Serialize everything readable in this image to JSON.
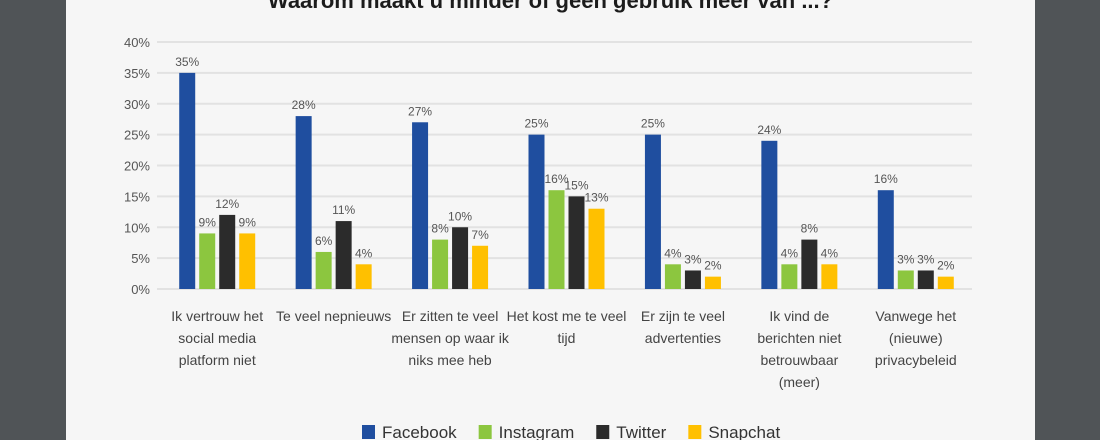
{
  "chart_data": {
    "type": "bar",
    "title": "Waarom maakt u minder of geen gebruik meer van ...?",
    "categories": [
      "Ik vertrouw het social media platform niet",
      "Te veel nepnieuws",
      "Er zitten te veel mensen op waar ik niks mee heb",
      "Het kost me te veel tijd",
      "Er zijn te veel advertenties",
      "Ik vind de berichten niet betrouwbaar (meer)",
      "Vanwege het (nieuwe) privacybeleid"
    ],
    "category_lines": [
      [
        "Ik vertrouw het",
        "social media",
        "platform niet"
      ],
      [
        "Te veel nepnieuws"
      ],
      [
        "Er zitten te veel",
        "mensen op waar ik",
        "niks mee heb"
      ],
      [
        "Het kost me te veel",
        "tijd"
      ],
      [
        "Er zijn te veel",
        "advertenties"
      ],
      [
        "Ik vind de",
        "berichten niet",
        "betrouwbaar",
        "(meer)"
      ],
      [
        "Vanwege het",
        "(nieuwe)",
        "privacybeleid"
      ]
    ],
    "series": [
      {
        "name": "Facebook",
        "color": "#1f4e9f",
        "values": [
          35,
          28,
          27,
          25,
          25,
          24,
          16
        ]
      },
      {
        "name": "Instagram",
        "color": "#8cc63f",
        "values": [
          9,
          6,
          8,
          16,
          4,
          4,
          3
        ]
      },
      {
        "name": "Twitter",
        "color": "#2b2b2b",
        "values": [
          12,
          11,
          10,
          15,
          3,
          8,
          3
        ]
      },
      {
        "name": "Snapchat",
        "color": "#ffc000",
        "values": [
          9,
          4,
          7,
          13,
          2,
          4,
          2
        ]
      }
    ],
    "ylim": [
      0,
      40
    ],
    "yticks": [
      "0%",
      "5%",
      "10%",
      "15%",
      "20%",
      "25%",
      "30%",
      "35%",
      "40%"
    ],
    "value_suffix": "%",
    "grid": true,
    "legend": "bottom"
  }
}
